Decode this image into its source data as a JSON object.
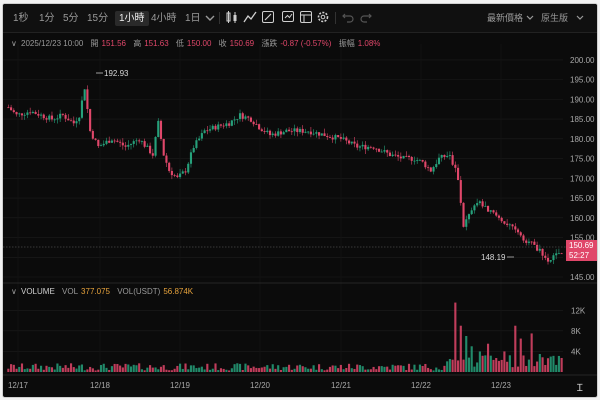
{
  "toolbar": {
    "timeframes": [
      "1秒",
      "1分",
      "5分",
      "15分",
      "1小時",
      "4小時",
      "1日"
    ],
    "active_timeframe": "1小時",
    "price_type": "最新價格",
    "view_mode": "原生版"
  },
  "ohlc": {
    "datetime": "2025/12/23 10:00",
    "open_label": "開",
    "open": "151.56",
    "high_label": "高",
    "high": "151.63",
    "low_label": "低",
    "low": "150.00",
    "close_label": "收",
    "close": "150.69",
    "change_label": "漲跌",
    "change": "-0.87 (-0.57%)",
    "amplitude_label": "振幅",
    "amplitude": "1.08%"
  },
  "volume_legend": {
    "title": "VOLUME",
    "vol_label": "VOL",
    "vol": "377.075",
    "usdt_label": "VOL(USDT)",
    "usdt": "56.874K"
  },
  "annotations": {
    "high_marker": "192.93",
    "low_marker": "148.19"
  },
  "price_tag": {
    "price": "150.69",
    "countdown": "52:27"
  },
  "colors": {
    "up": "#26a17b",
    "down": "#e0476a",
    "background": "#0b0b0b",
    "grid": "#1c1c1c"
  },
  "chart_data": {
    "type": "candlestick",
    "price_axis": {
      "ticks": [
        145,
        150,
        155,
        160,
        165,
        170,
        175,
        180,
        185,
        190,
        195,
        200
      ],
      "range": [
        145,
        202
      ]
    },
    "volume_axis": {
      "ticks": [
        "4K",
        "8K",
        "12K"
      ],
      "range": [
        0,
        14000
      ]
    },
    "x_labels": [
      "12/17",
      "12/18",
      "12/19",
      "12/20",
      "12/21",
      "12/22",
      "12/23"
    ],
    "anchors": [
      [
        0,
        188
      ],
      [
        3,
        186
      ],
      [
        8,
        187
      ],
      [
        12,
        186
      ],
      [
        16,
        185
      ],
      [
        20,
        186
      ],
      [
        24,
        184
      ],
      [
        26,
        186
      ],
      [
        28,
        193
      ],
      [
        30,
        182
      ],
      [
        33,
        178
      ],
      [
        38,
        180
      ],
      [
        43,
        178
      ],
      [
        48,
        180
      ],
      [
        53,
        176
      ],
      [
        55,
        184
      ],
      [
        57,
        176
      ],
      [
        59,
        172
      ],
      [
        62,
        170
      ],
      [
        65,
        172
      ],
      [
        68,
        178
      ],
      [
        72,
        182
      ],
      [
        76,
        183
      ],
      [
        81,
        184
      ],
      [
        85,
        186
      ],
      [
        89,
        185
      ],
      [
        92,
        183
      ],
      [
        96,
        181
      ],
      [
        102,
        182
      ],
      [
        110,
        182
      ],
      [
        116,
        181
      ],
      [
        122,
        180
      ],
      [
        128,
        178
      ],
      [
        134,
        178
      ],
      [
        140,
        176
      ],
      [
        145,
        175
      ],
      [
        149,
        175
      ],
      [
        152,
        174
      ],
      [
        155,
        172
      ],
      [
        158,
        175
      ],
      [
        162,
        176
      ],
      [
        165,
        170
      ],
      [
        167,
        158
      ],
      [
        170,
        162
      ],
      [
        173,
        164
      ],
      [
        176,
        162
      ],
      [
        180,
        160
      ],
      [
        184,
        158
      ],
      [
        188,
        155
      ],
      [
        191,
        154
      ],
      [
        194,
        152
      ],
      [
        196,
        151
      ],
      [
        198,
        149
      ],
      [
        200,
        150
      ],
      [
        202,
        151
      ],
      [
        203,
        150.69
      ]
    ],
    "volume_spikes": [
      [
        164,
        13500
      ],
      [
        166,
        9000
      ],
      [
        168,
        7000
      ],
      [
        170,
        5000
      ],
      [
        173,
        4000
      ],
      [
        176,
        5500
      ],
      [
        182,
        4000
      ],
      [
        186,
        9000
      ],
      [
        188,
        6500
      ],
      [
        192,
        7500
      ],
      [
        195,
        3500
      ],
      [
        199,
        3000
      ]
    ]
  }
}
